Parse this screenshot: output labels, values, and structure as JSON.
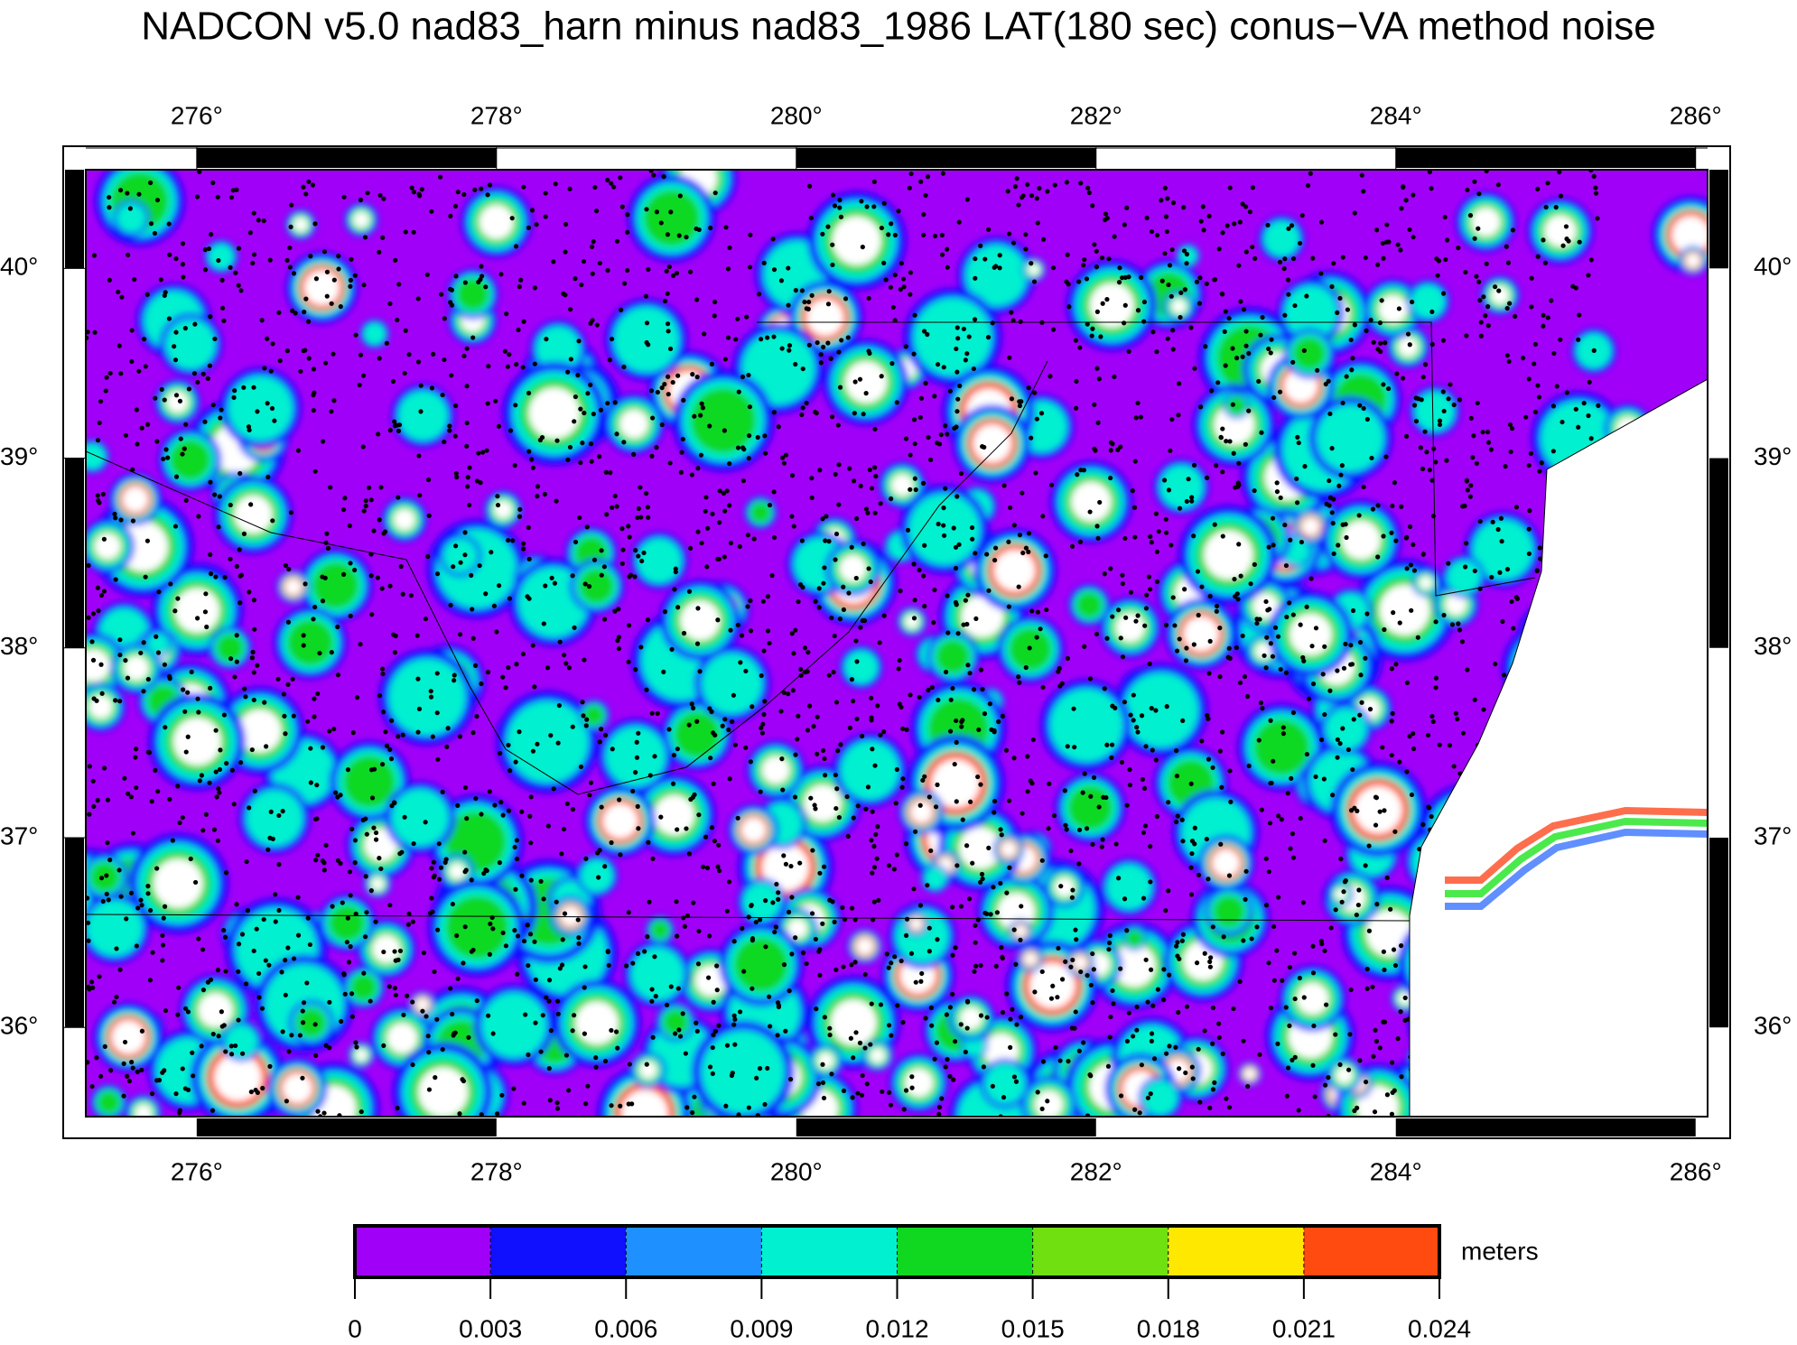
{
  "map": {
    "title": "NADCON v5.0 nad83_harn minus nad83_1986 LAT(180 sec) conus−VA method noise",
    "xlim": [
      275.26,
      286.08
    ],
    "xticks": [
      {
        "value": 276,
        "label": "276°"
      },
      {
        "value": 278,
        "label": "278°"
      },
      {
        "value": 280,
        "label": "280°"
      },
      {
        "value": 282,
        "label": "282°"
      },
      {
        "value": 284,
        "label": "284°"
      },
      {
        "value": 286,
        "label": "286°"
      }
    ],
    "ylim": [
      35.53,
      40.52
    ],
    "yticks": [
      {
        "value": 36,
        "label": "36°"
      },
      {
        "value": 37,
        "label": "37°"
      },
      {
        "value": 38,
        "label": "38°"
      },
      {
        "value": 39,
        "label": "39°"
      },
      {
        "value": 40,
        "label": "40°"
      }
    ],
    "colorbar": {
      "label": "meters",
      "lim": [
        0,
        0.024
      ],
      "ticks": [
        0,
        0.003,
        0.006,
        0.009,
        0.012,
        0.015,
        0.018,
        0.021,
        0.024
      ],
      "colors": [
        "#a000f8",
        "#1010ff",
        "#1e90ff",
        "#00f0d0",
        "#10d820",
        "#70e010",
        "#ffe800",
        "#ff4a10"
      ]
    }
  }
}
